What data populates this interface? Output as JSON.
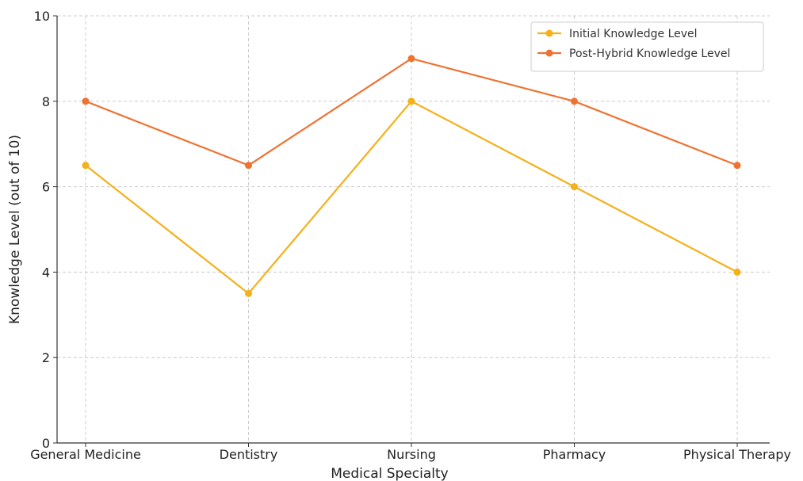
{
  "chart_data": {
    "type": "line",
    "title": "",
    "xlabel": "Medical Specialty",
    "ylabel": "Knowledge Level (out of 10)",
    "categories": [
      "General Medicine",
      "Dentistry",
      "Nursing",
      "Pharmacy",
      "Physical Therapy"
    ],
    "series": [
      {
        "name": "Initial Knowledge Level",
        "values": [
          6.5,
          3.5,
          8,
          6,
          4
        ],
        "color": "#F5B01A"
      },
      {
        "name": "Post-Hybrid Knowledge Level",
        "values": [
          8,
          6.5,
          9,
          8,
          6.5
        ],
        "color": "#EE7332"
      }
    ],
    "ylim": [
      0,
      10
    ],
    "yticks": [
      0,
      2,
      4,
      6,
      8,
      10
    ],
    "grid": true,
    "legend_position": "top-right"
  }
}
